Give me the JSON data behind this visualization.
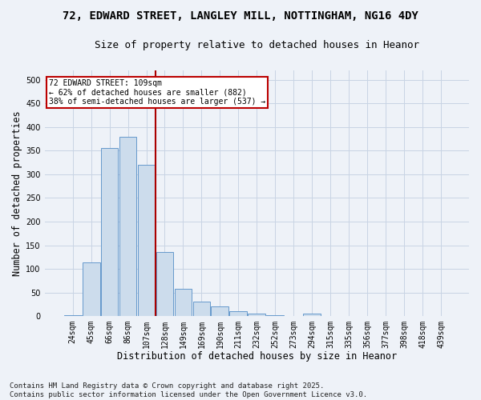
{
  "title_line1": "72, EDWARD STREET, LANGLEY MILL, NOTTINGHAM, NG16 4DY",
  "title_line2": "Size of property relative to detached houses in Heanor",
  "xlabel": "Distribution of detached houses by size in Heanor",
  "ylabel": "Number of detached properties",
  "bar_color": "#ccdcec",
  "bar_edge_color": "#6699cc",
  "categories": [
    "24sqm",
    "45sqm",
    "66sqm",
    "86sqm",
    "107sqm",
    "128sqm",
    "149sqm",
    "169sqm",
    "190sqm",
    "211sqm",
    "232sqm",
    "252sqm",
    "273sqm",
    "294sqm",
    "315sqm",
    "335sqm",
    "356sqm",
    "377sqm",
    "398sqm",
    "418sqm",
    "439sqm"
  ],
  "values": [
    2,
    113,
    355,
    380,
    320,
    135,
    58,
    30,
    20,
    10,
    5,
    2,
    1,
    5,
    1,
    0,
    0,
    0,
    0,
    0,
    0
  ],
  "ylim": [
    0,
    520
  ],
  "yticks": [
    0,
    50,
    100,
    150,
    200,
    250,
    300,
    350,
    400,
    450,
    500
  ],
  "vline_color": "#aa0000",
  "annotation_text": "72 EDWARD STREET: 109sqm\n← 62% of detached houses are smaller (882)\n38% of semi-detached houses are larger (537) →",
  "annotation_bbox_color": "white",
  "annotation_bbox_edgecolor": "#bb0000",
  "footer_text": "Contains HM Land Registry data © Crown copyright and database right 2025.\nContains public sector information licensed under the Open Government Licence v3.0.",
  "bg_color": "#eef2f8",
  "grid_color": "#c8d4e4",
  "title_fontsize": 10,
  "subtitle_fontsize": 9,
  "tick_fontsize": 7,
  "label_fontsize": 8.5,
  "footer_fontsize": 6.5
}
